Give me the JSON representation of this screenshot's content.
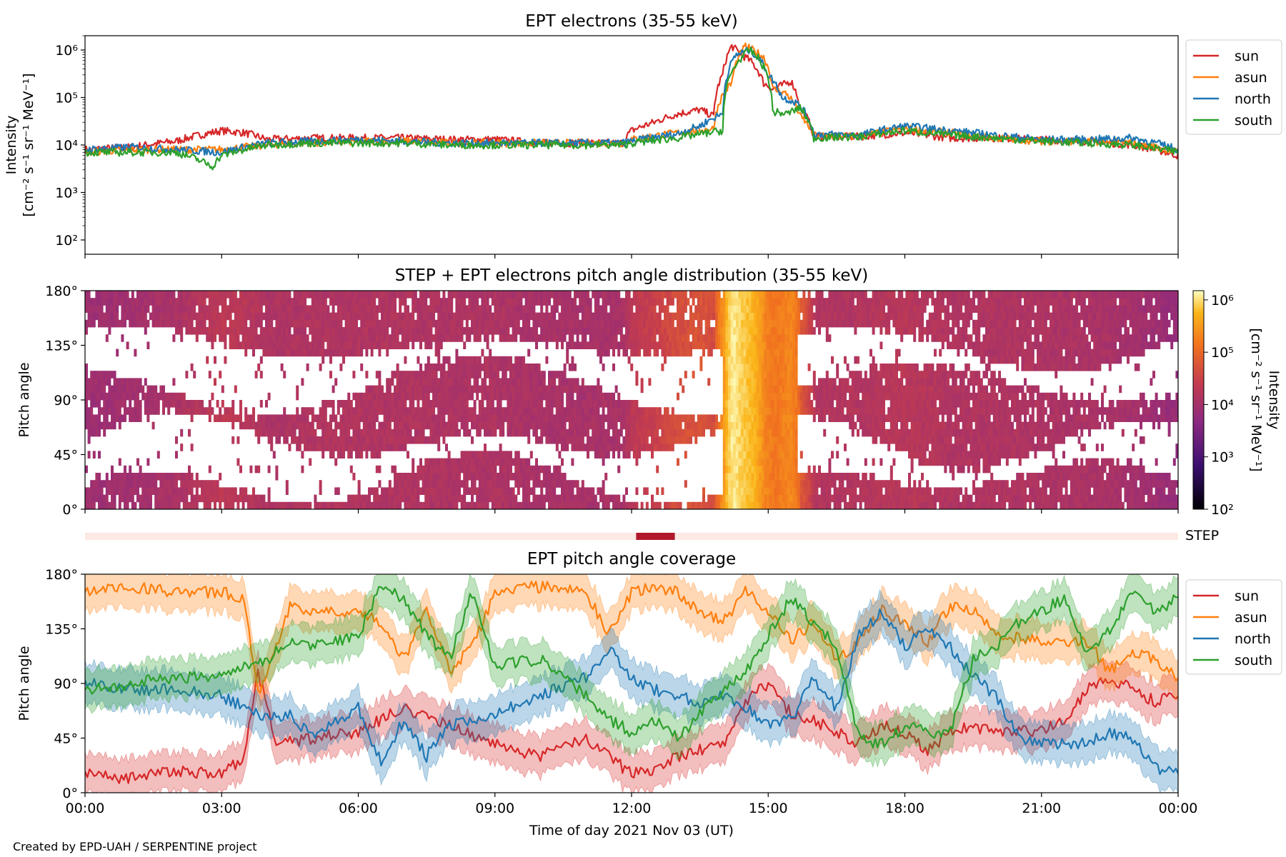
{
  "footer": {
    "credit": "Created by EPD-UAH / SERPENTINE project"
  },
  "colors": {
    "sun": "#d62728",
    "asun": "#ff7f0e",
    "north": "#1f77b4",
    "south": "#2ca02c",
    "step_bar": "#b2182b",
    "step_bg": "#fde9e4"
  },
  "chart_data": [
    {
      "type": "line",
      "title": "EPT electrons (35-55 keV)",
      "ylabel_line1": "Intensity",
      "ylabel_line2": "[cm⁻² s⁻¹ sr⁻¹ MeV⁻¹]",
      "yscale": "log",
      "ylim": [
        50,
        2000000
      ],
      "yticks": [
        {
          "value": 100,
          "label": "10²"
        },
        {
          "value": 1000,
          "label": "10³"
        },
        {
          "value": 10000,
          "label": "10⁴"
        },
        {
          "value": 100000,
          "label": "10⁵"
        },
        {
          "value": 1000000,
          "label": "10⁶"
        }
      ],
      "x_unit": "hours of 2021-11-03 (UT)",
      "xlim": [
        0,
        24
      ],
      "legend": {
        "placement": "outside-right-top",
        "entries": [
          "sun",
          "asun",
          "north",
          "south"
        ]
      },
      "series": [
        {
          "name": "sun",
          "color": "#d62728",
          "x": [
            0,
            1,
            2,
            3,
            3.5,
            4,
            5,
            6,
            7,
            8,
            9,
            10,
            11.8,
            12,
            12.5,
            13,
            13.5,
            13.8,
            14,
            14.2,
            14.4,
            14.6,
            14.9,
            15.1,
            15.3,
            15.5,
            15.7,
            16,
            17,
            18,
            19,
            20,
            21,
            22,
            23,
            24
          ],
          "y": [
            8000,
            9000,
            12000,
            20000,
            18000,
            13000,
            14000,
            14000,
            14000,
            13000,
            13000,
            11000,
            11000,
            20000,
            30000,
            45000,
            55000,
            40000,
            300000,
            1200000,
            800000,
            600000,
            200000,
            150000,
            180000,
            220000,
            60000,
            15000,
            15000,
            18000,
            14000,
            14000,
            13000,
            12000,
            10000,
            6000
          ]
        },
        {
          "name": "asun",
          "color": "#ff7f0e",
          "x": [
            0,
            1,
            2,
            3,
            4,
            5,
            6,
            7,
            8,
            9,
            10,
            11.8,
            12,
            13,
            13.8,
            14.2,
            14.5,
            14.9,
            15.1,
            15.4,
            15.7,
            16,
            17,
            18,
            19,
            20,
            21,
            22,
            23,
            24
          ],
          "y": [
            7000,
            8000,
            8000,
            8000,
            10000,
            11000,
            12000,
            12000,
            11000,
            11000,
            11000,
            11000,
            13000,
            18000,
            22000,
            200000,
            1200000,
            700000,
            150000,
            120000,
            40000,
            16000,
            15000,
            22000,
            18000,
            14000,
            12000,
            12000,
            11000,
            7000
          ]
        },
        {
          "name": "north",
          "color": "#1f77b4",
          "x": [
            0,
            1,
            2,
            3,
            4,
            5,
            6,
            7,
            8,
            9,
            10,
            11.8,
            12,
            13,
            13.5,
            14,
            14.3,
            14.6,
            15,
            15.3,
            15.6,
            16,
            17,
            18,
            19,
            20,
            21,
            22,
            23,
            24
          ],
          "y": [
            8000,
            9000,
            8000,
            7000,
            11000,
            12000,
            13000,
            12000,
            11000,
            11000,
            11000,
            11000,
            12000,
            17000,
            25000,
            45000,
            800000,
            1000000,
            300000,
            100000,
            80000,
            17000,
            16000,
            25000,
            20000,
            16000,
            13000,
            13000,
            14000,
            8000
          ]
        },
        {
          "name": "south",
          "color": "#2ca02c",
          "x": [
            0,
            1,
            2,
            2.8,
            3,
            4,
            5,
            6,
            7,
            8,
            9,
            10,
            11.8,
            12,
            13,
            14,
            14.3,
            14.6,
            15,
            15.1,
            15.4,
            15.7,
            16,
            17,
            18,
            19,
            20,
            21,
            22,
            23,
            24
          ],
          "y": [
            7000,
            7000,
            7000,
            3500,
            6000,
            10000,
            11000,
            11000,
            11000,
            10000,
            10000,
            10000,
            10000,
            11000,
            14000,
            20000,
            500000,
            1000000,
            250000,
            50000,
            45000,
            60000,
            14000,
            15000,
            20000,
            16000,
            14000,
            12000,
            11000,
            10000,
            7000
          ]
        }
      ]
    },
    {
      "type": "heatmap",
      "title": "STEP + EPT electrons pitch angle distribution (35-55 keV)",
      "ylabel": "Pitch angle",
      "ylim": [
        0,
        180
      ],
      "yticks": [
        {
          "value": 0,
          "label": "0°"
        },
        {
          "value": 45,
          "label": "45°"
        },
        {
          "value": 90,
          "label": "90°"
        },
        {
          "value": 135,
          "label": "135°"
        },
        {
          "value": 180,
          "label": "180°"
        }
      ],
      "xlim": [
        0,
        24
      ],
      "colorbar": {
        "label": "Intensity",
        "unit": "[cm⁻² s⁻¹ sr⁻¹ MeV⁻¹]",
        "scale": "log",
        "range": [
          100,
          1500000
        ],
        "ticks": [
          {
            "value": 100,
            "label": "10²"
          },
          {
            "value": 1000,
            "label": "10³"
          },
          {
            "value": 10000,
            "label": "10⁴"
          },
          {
            "value": 100000,
            "label": "10⁵"
          },
          {
            "value": 1000000,
            "label": "10⁶"
          }
        ]
      },
      "step_bar": {
        "label": "STEP",
        "active_interval_hours": [
          12.1,
          12.95
        ]
      }
    },
    {
      "type": "line",
      "title": "EPT pitch angle coverage",
      "ylabel": "Pitch angle",
      "ylim": [
        0,
        180
      ],
      "yticks": [
        {
          "value": 0,
          "label": "0°"
        },
        {
          "value": 45,
          "label": "45°"
        },
        {
          "value": 90,
          "label": "90°"
        },
        {
          "value": 135,
          "label": "135°"
        },
        {
          "value": 180,
          "label": "180°"
        }
      ],
      "xlabel": "Time of day 2021 Nov 03 (UT)",
      "xlim": [
        0,
        24
      ],
      "xticks": [
        {
          "value": 0,
          "label": "00:00"
        },
        {
          "value": 3,
          "label": "03:00"
        },
        {
          "value": 6,
          "label": "06:00"
        },
        {
          "value": 9,
          "label": "09:00"
        },
        {
          "value": 12,
          "label": "12:00"
        },
        {
          "value": 15,
          "label": "15:00"
        },
        {
          "value": 18,
          "label": "18:00"
        },
        {
          "value": 21,
          "label": "21:00"
        },
        {
          "value": 24,
          "label": "00:00"
        }
      ],
      "legend": {
        "placement": "outside-right-top",
        "entries": [
          "sun",
          "asun",
          "north",
          "south"
        ]
      },
      "series": [
        {
          "name": "sun",
          "color": "#d62728",
          "x": [
            0,
            1,
            2,
            3,
            3.5,
            3.8,
            4.2,
            5,
            6,
            7,
            8,
            9,
            10,
            11,
            12,
            12.5,
            13,
            13.5,
            14,
            14.5,
            15,
            15.5,
            16,
            17,
            17.5,
            18,
            18.5,
            19,
            19.5,
            20,
            21,
            21.5,
            22,
            22.5,
            23,
            23.5,
            24
          ],
          "y": [
            15,
            12,
            18,
            15,
            30,
            100,
            40,
            45,
            50,
            70,
            55,
            40,
            30,
            45,
            15,
            20,
            30,
            35,
            40,
            75,
            90,
            65,
            60,
            40,
            55,
            50,
            35,
            50,
            55,
            50,
            50,
            60,
            85,
            95,
            85,
            75,
            80
          ]
        },
        {
          "name": "asun",
          "color": "#ff7f0e",
          "x": [
            0,
            1,
            2,
            3,
            3.5,
            3.8,
            4.2,
            4.5,
            5,
            6,
            6.5,
            7,
            7.5,
            8,
            8.5,
            9,
            10,
            11,
            11.5,
            12,
            12.5,
            13,
            13.5,
            14,
            14.5,
            15,
            15.5,
            16,
            16.5,
            17,
            17.5,
            18,
            18.5,
            19,
            19.5,
            20,
            21,
            22,
            22.5,
            23,
            23.5,
            24
          ],
          "y": [
            165,
            170,
            165,
            165,
            160,
            80,
            120,
            155,
            150,
            150,
            140,
            110,
            150,
            100,
            120,
            165,
            170,
            165,
            130,
            165,
            170,
            165,
            150,
            140,
            165,
            150,
            125,
            140,
            110,
            125,
            150,
            140,
            125,
            155,
            150,
            130,
            125,
            125,
            100,
            115,
            110,
            95
          ]
        },
        {
          "name": "north",
          "color": "#1f77b4",
          "x": [
            0,
            1,
            2,
            3,
            3.5,
            4,
            4.5,
            5,
            6,
            6.5,
            7,
            7.5,
            8,
            8.5,
            9,
            10,
            11,
            11.5,
            12,
            12.5,
            13,
            13.5,
            14,
            14.5,
            15,
            15.5,
            16,
            16.5,
            17,
            17.5,
            18,
            18.5,
            19,
            19.5,
            20,
            20.5,
            21,
            22,
            22.5,
            23,
            23.5,
            24
          ],
          "y": [
            90,
            85,
            85,
            80,
            70,
            60,
            65,
            45,
            70,
            25,
            60,
            30,
            55,
            60,
            65,
            80,
            95,
            120,
            95,
            85,
            80,
            75,
            80,
            70,
            55,
            60,
            95,
            70,
            130,
            150,
            120,
            135,
            120,
            95,
            80,
            45,
            40,
            40,
            50,
            45,
            20,
            20
          ]
        },
        {
          "name": "south",
          "color": "#2ca02c",
          "x": [
            0,
            1,
            2,
            3,
            3.5,
            4,
            4.5,
            5,
            6,
            6.5,
            7,
            7.5,
            8,
            8.5,
            9,
            10,
            11,
            11.5,
            12,
            12.5,
            13,
            13.5,
            14,
            14.5,
            15,
            15.5,
            16,
            16.5,
            17,
            17.5,
            18,
            18.5,
            19,
            19.5,
            20,
            20.5,
            21,
            21.5,
            22,
            22.5,
            23,
            23.5,
            24
          ],
          "y": [
            85,
            90,
            95,
            95,
            105,
            110,
            125,
            120,
            130,
            170,
            160,
            130,
            110,
            165,
            105,
            110,
            80,
            60,
            50,
            60,
            45,
            65,
            85,
            100,
            130,
            160,
            140,
            120,
            45,
            40,
            55,
            50,
            50,
            110,
            120,
            140,
            150,
            160,
            115,
            135,
            165,
            150,
            160
          ]
        }
      ]
    }
  ]
}
